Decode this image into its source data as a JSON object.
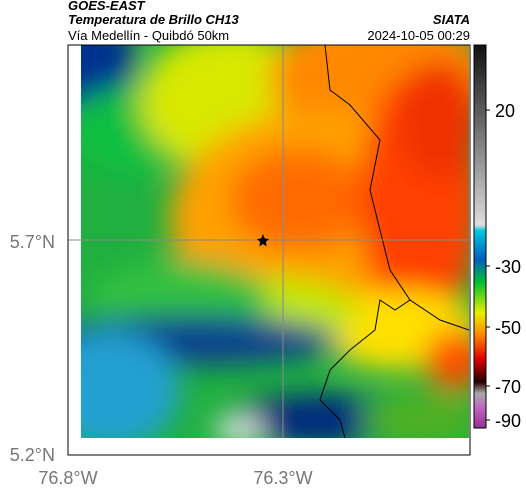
{
  "header": {
    "agency": "GOES-EAST",
    "title": "Temperatura de Brillo CH13",
    "subtitle": "Vía Medellín - Quibdó 50km",
    "source": "SIATA",
    "datetime": "2024-10-05 00:29"
  },
  "map": {
    "lat_labels": [
      "5.7°N",
      "5.2°N"
    ],
    "lon_labels": [
      "76.8°W",
      "76.3°W"
    ]
  },
  "colorbar": {
    "ticks": [
      "20",
      "-30",
      "-50",
      "-70",
      "-90"
    ]
  }
}
